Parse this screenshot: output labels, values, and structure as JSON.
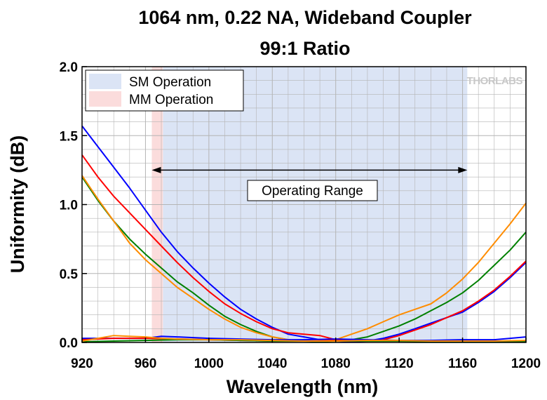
{
  "chart_data": {
    "type": "line",
    "title_line1": "1064 nm, 0.22 NA, Wideband Coupler",
    "title_line2": "99:1 Ratio",
    "xlabel": "Wavelength (nm)",
    "ylabel": "Uniformity (dB)",
    "xlim": [
      920,
      1200
    ],
    "ylim": [
      0,
      2.0
    ],
    "xticks": [
      "920",
      "960",
      "1000",
      "1040",
      "1080",
      "1120",
      "1160",
      "1200"
    ],
    "yticks": [
      "0.0",
      "0.5",
      "1.0",
      "1.5",
      "2.0"
    ],
    "grid": true,
    "legend": [
      {
        "label": "SM Operation",
        "color": "#dbe4f5"
      },
      {
        "label": "MM Operation",
        "color": "#fbdcdc"
      }
    ],
    "regions": {
      "mm": [
        964,
        971
      ],
      "sm": [
        971,
        1163
      ]
    },
    "annotation": {
      "text": "Operating Range",
      "from": 964,
      "to": 1163,
      "y": 1.25
    },
    "logo": "THORLABS",
    "colors": {
      "blue": "#0000ff",
      "red": "#ff0000",
      "green": "#008000",
      "orange": "#ff8c00"
    },
    "series": [
      {
        "color": "#0000ff",
        "x": [
          920,
          930,
          940,
          950,
          960,
          970,
          980,
          990,
          1000,
          1010,
          1020,
          1030,
          1040,
          1050,
          1060,
          1070,
          1080,
          1090,
          1100,
          1110,
          1120,
          1130,
          1140,
          1150,
          1160,
          1170,
          1180,
          1190,
          1200
        ],
        "y": [
          1.57,
          1.42,
          1.27,
          1.12,
          0.96,
          0.8,
          0.66,
          0.54,
          0.43,
          0.33,
          0.24,
          0.17,
          0.11,
          0.06,
          0.04,
          0.02,
          0.01,
          0.005,
          0.01,
          0.03,
          0.06,
          0.1,
          0.14,
          0.18,
          0.22,
          0.29,
          0.37,
          0.47,
          0.58
        ]
      },
      {
        "color": "#ff0000",
        "x": [
          920,
          930,
          940,
          950,
          960,
          970,
          980,
          990,
          1000,
          1010,
          1020,
          1030,
          1040,
          1050,
          1060,
          1070,
          1080,
          1090,
          1100,
          1110,
          1120,
          1130,
          1140,
          1150,
          1160,
          1170,
          1180,
          1190,
          1200
        ],
        "y": [
          1.36,
          1.2,
          1.06,
          0.94,
          0.82,
          0.7,
          0.58,
          0.47,
          0.37,
          0.28,
          0.21,
          0.15,
          0.1,
          0.07,
          0.06,
          0.05,
          0.02,
          0.01,
          0.01,
          0.02,
          0.05,
          0.09,
          0.13,
          0.18,
          0.23,
          0.3,
          0.38,
          0.48,
          0.59
        ]
      },
      {
        "color": "#008000",
        "x": [
          920,
          930,
          940,
          950,
          960,
          970,
          980,
          990,
          1000,
          1010,
          1020,
          1030,
          1040,
          1050,
          1060,
          1070,
          1080,
          1090,
          1100,
          1110,
          1120,
          1130,
          1140,
          1150,
          1160,
          1170,
          1180,
          1190,
          1200
        ],
        "y": [
          1.2,
          1.03,
          0.88,
          0.75,
          0.64,
          0.54,
          0.44,
          0.36,
          0.27,
          0.19,
          0.13,
          0.08,
          0.04,
          0.02,
          0.01,
          0.005,
          0.01,
          0.02,
          0.04,
          0.08,
          0.12,
          0.17,
          0.23,
          0.29,
          0.36,
          0.45,
          0.56,
          0.67,
          0.8
        ]
      },
      {
        "color": "#ff8c00",
        "x": [
          920,
          930,
          940,
          950,
          960,
          970,
          980,
          990,
          1000,
          1010,
          1020,
          1030,
          1040,
          1050,
          1060,
          1070,
          1080,
          1090,
          1100,
          1110,
          1120,
          1130,
          1140,
          1150,
          1160,
          1170,
          1180,
          1190,
          1200
        ],
        "y": [
          1.21,
          1.04,
          0.88,
          0.72,
          0.6,
          0.5,
          0.4,
          0.32,
          0.24,
          0.17,
          0.11,
          0.07,
          0.04,
          0.02,
          0.01,
          0.01,
          0.02,
          0.06,
          0.1,
          0.15,
          0.2,
          0.24,
          0.28,
          0.36,
          0.46,
          0.58,
          0.72,
          0.86,
          1.01
        ]
      },
      {
        "color": "#0000ff",
        "x": [
          920,
          940,
          960,
          970,
          980,
          1000,
          1020,
          1040,
          1060,
          1080,
          1100,
          1120,
          1140,
          1160,
          1180,
          1200
        ],
        "y": [
          0.03,
          0.03,
          0.03,
          0.045,
          0.04,
          0.03,
          0.025,
          0.02,
          0.02,
          0.025,
          0.02,
          0.015,
          0.015,
          0.02,
          0.02,
          0.04
        ]
      },
      {
        "color": "#ff0000",
        "x": [
          920,
          940,
          960,
          980,
          1000,
          1020,
          1040,
          1060,
          1080,
          1100,
          1120,
          1140,
          1160,
          1180,
          1200
        ],
        "y": [
          0.02,
          0.03,
          0.03,
          0.025,
          0.02,
          0.015,
          0.01,
          0.01,
          0.015,
          0.01,
          0.01,
          0.01,
          0.01,
          0.01,
          0.01
        ]
      },
      {
        "color": "#008000",
        "x": [
          920,
          940,
          960,
          980,
          1000,
          1020,
          1040,
          1060,
          1080,
          1100,
          1120,
          1140,
          1160,
          1180,
          1200
        ],
        "y": [
          0.005,
          0.01,
          0.015,
          0.02,
          0.02,
          0.015,
          0.01,
          0.01,
          0.01,
          0.01,
          0.01,
          0.005,
          0.005,
          0.005,
          0.005
        ]
      },
      {
        "color": "#ff8c00",
        "x": [
          920,
          930,
          940,
          950,
          960,
          970,
          980,
          1000,
          1020,
          1040,
          1060,
          1080,
          1100,
          1120,
          1140,
          1160,
          1180,
          1200
        ],
        "y": [
          0.01,
          0.03,
          0.05,
          0.045,
          0.04,
          0.03,
          0.025,
          0.02,
          0.02,
          0.015,
          0.01,
          0.01,
          0.015,
          0.015,
          0.01,
          0.01,
          0.01,
          0.015
        ]
      }
    ]
  }
}
